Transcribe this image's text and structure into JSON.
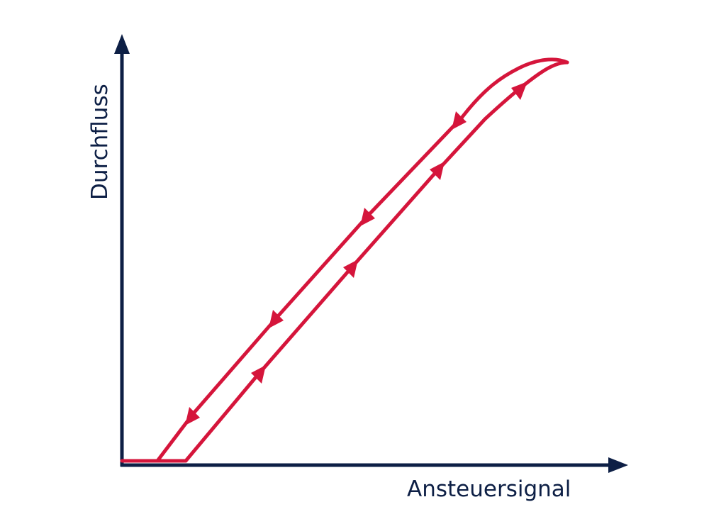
{
  "diagram": {
    "type": "hysteresis-loop",
    "x_axis_label": "Ansteuersignal",
    "y_axis_label": "Durchfluss",
    "colors": {
      "axis": "#0d1f45",
      "curve": "#d5153b"
    }
  }
}
